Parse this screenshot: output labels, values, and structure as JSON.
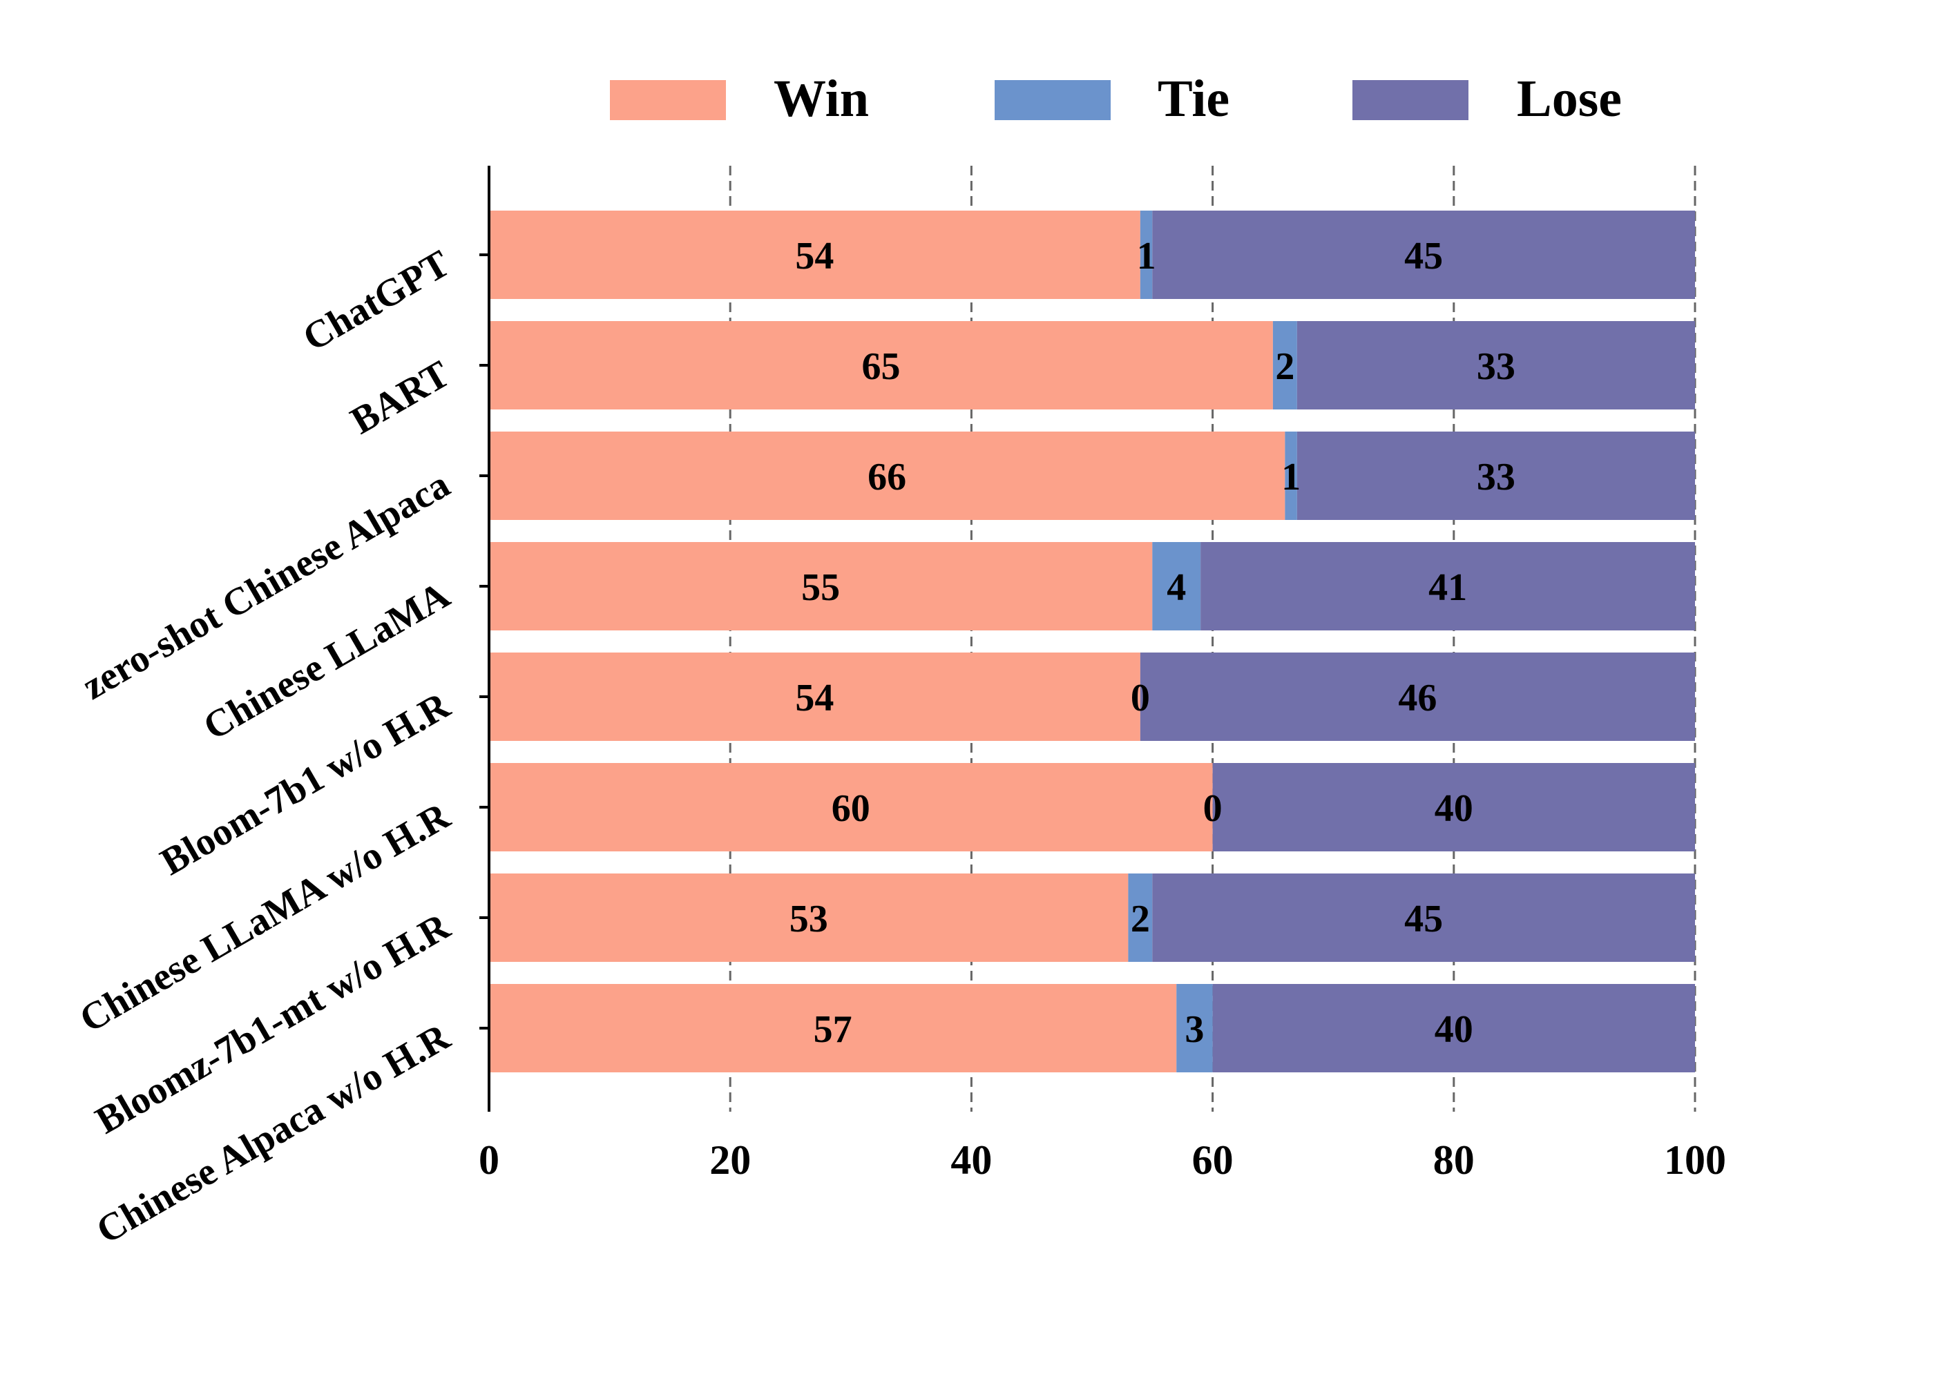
{
  "chart_data": {
    "type": "bar",
    "orientation": "horizontal",
    "stacked": true,
    "title": "",
    "xlabel": "",
    "ylabel": "",
    "xlim": [
      0,
      100
    ],
    "x_ticks": [
      0,
      20,
      40,
      60,
      80,
      100
    ],
    "grid": "vertical-dashed",
    "legend_position": "top",
    "categories": [
      "ChatGPT",
      "BART",
      "zero-shot Chinese Alpaca",
      "Chinese LLaMA",
      "Bloom-7b1 w/o H.R",
      "Chinese LLaMA w/o H.R",
      "Bloomz-7b1-mt w/o H.R",
      "Chinese Alpaca w/o H.R"
    ],
    "series": [
      {
        "name": "Win",
        "color": "#fca28a",
        "values": [
          54,
          65,
          66,
          55,
          54,
          60,
          53,
          57
        ]
      },
      {
        "name": "Tie",
        "color": "#6b93cc",
        "values": [
          1,
          2,
          1,
          4,
          0,
          0,
          2,
          3
        ]
      },
      {
        "name": "Lose",
        "color": "#7170aa",
        "values": [
          45,
          33,
          33,
          41,
          46,
          40,
          45,
          40
        ]
      }
    ]
  }
}
